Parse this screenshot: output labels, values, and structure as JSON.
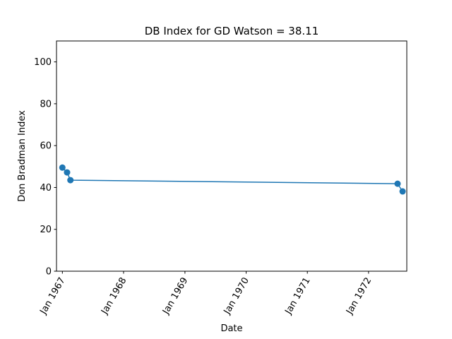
{
  "chart_data": {
    "type": "line",
    "title": "DB Index for GD Watson = 38.11",
    "xlabel": "Date",
    "ylabel": "Don Bradman Index",
    "ylim": [
      0,
      110
    ],
    "xlim": [
      "1966-11-27",
      "1972-08-16"
    ],
    "y_ticks": [
      0,
      20,
      40,
      60,
      80,
      100
    ],
    "x_ticks": [
      {
        "date": "1967-01-01",
        "label": "Jan 1967"
      },
      {
        "date": "1968-01-01",
        "label": "Jan 1968"
      },
      {
        "date": "1969-01-01",
        "label": "Jan 1969"
      },
      {
        "date": "1970-01-01",
        "label": "Jan 1970"
      },
      {
        "date": "1971-01-01",
        "label": "Jan 1971"
      },
      {
        "date": "1972-01-01",
        "label": "Jan 1972"
      }
    ],
    "grid": false,
    "line_color": "#1f77b4",
    "series": [
      {
        "x": [
          "1967-01-01",
          "1967-01-29",
          "1967-02-18",
          "1972-06-22",
          "1972-07-22"
        ],
        "y": [
          49.5,
          47.2,
          43.5,
          41.8,
          38.11
        ]
      }
    ]
  }
}
